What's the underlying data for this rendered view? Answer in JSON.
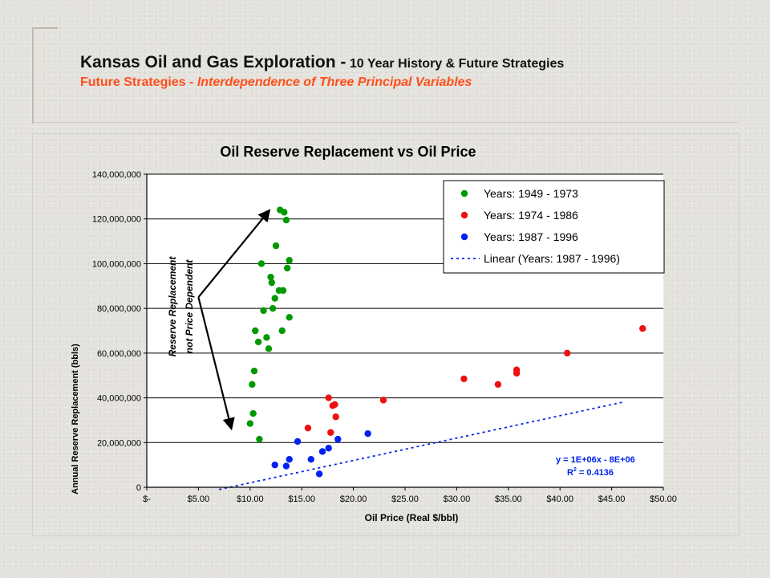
{
  "header": {
    "title_main": "Kansas Oil and Gas Exploration -",
    "title_rest": " 10 Year History & Future Strategies",
    "subtitle_lead": "Future Strategies - ",
    "subtitle_italic": "Interdependence of Three Principal Variables"
  },
  "colors": {
    "green": "#009900",
    "red": "#ee1111",
    "blue": "#0022ee",
    "accent": "#ff4e1a"
  },
  "chart_data": {
    "type": "scatter",
    "title": "Oil Reserve Replacement vs Oil Price",
    "xlabel": "Oil Price (Real $/bbl)",
    "ylabel": "Annual Reserve Replacement (bbls)",
    "xlim": [
      0,
      50
    ],
    "ylim": [
      0,
      140000000
    ],
    "x_ticks": [
      0,
      5,
      10,
      15,
      20,
      25,
      30,
      35,
      40,
      45,
      50
    ],
    "x_tick_labels": [
      "$-",
      "$5.00",
      "$10.00",
      "$15.00",
      "$20.00",
      "$25.00",
      "$30.00",
      "$35.00",
      "$40.00",
      "$45.00",
      "$50.00"
    ],
    "y_ticks": [
      0,
      20000000,
      40000000,
      60000000,
      80000000,
      100000000,
      120000000,
      140000000
    ],
    "y_tick_labels": [
      "0",
      "20,000,000",
      "40,000,000",
      "60,000,000",
      "80,000,000",
      "100,000,000",
      "120,000,000",
      "140,000,000"
    ],
    "grid": "horizontal",
    "legend_position": "top-right",
    "series": [
      {
        "name": "Years: 1949 - 1973",
        "color": "green",
        "points": [
          [
            10.0,
            28500000
          ],
          [
            10.3,
            33000000
          ],
          [
            10.2,
            46000000
          ],
          [
            10.4,
            52000000
          ],
          [
            10.5,
            70000000
          ],
          [
            10.8,
            65000000
          ],
          [
            10.9,
            21500000
          ],
          [
            11.1,
            100000000
          ],
          [
            11.3,
            79000000
          ],
          [
            11.6,
            67000000
          ],
          [
            11.8,
            62000000
          ],
          [
            12.0,
            94000000
          ],
          [
            12.1,
            91500000
          ],
          [
            12.2,
            80000000
          ],
          [
            12.4,
            84500000
          ],
          [
            12.5,
            108000000
          ],
          [
            12.8,
            88000000
          ],
          [
            12.9,
            124000000
          ],
          [
            13.1,
            70000000
          ],
          [
            13.2,
            88000000
          ],
          [
            13.3,
            123000000
          ],
          [
            13.5,
            119500000
          ],
          [
            13.6,
            98000000
          ],
          [
            13.8,
            101500000
          ],
          [
            13.8,
            76000000
          ]
        ]
      },
      {
        "name": "Years: 1974 - 1986",
        "color": "red",
        "points": [
          [
            15.6,
            26500000
          ],
          [
            17.6,
            40000000
          ],
          [
            17.8,
            24500000
          ],
          [
            18.0,
            36500000
          ],
          [
            18.2,
            37000000
          ],
          [
            18.3,
            31500000
          ],
          [
            22.9,
            39000000
          ],
          [
            30.7,
            48500000
          ],
          [
            34.0,
            46000000
          ],
          [
            35.8,
            51000000
          ],
          [
            35.8,
            52500000
          ],
          [
            40.7,
            60000000
          ],
          [
            48.0,
            71000000
          ]
        ]
      },
      {
        "name": "Years: 1987 - 1996",
        "color": "blue",
        "points": [
          [
            12.4,
            10000000
          ],
          [
            13.5,
            9500000
          ],
          [
            13.8,
            12500000
          ],
          [
            14.6,
            20500000
          ],
          [
            15.9,
            12500000
          ],
          [
            16.7,
            6000000
          ],
          [
            17.0,
            16000000
          ],
          [
            17.6,
            17500000
          ],
          [
            18.5,
            21500000
          ],
          [
            21.4,
            24000000
          ]
        ]
      }
    ],
    "trendline": {
      "name": "Linear (Years: 1987 - 1996)",
      "slope": 1000000,
      "intercept": -8000000,
      "x_range": [
        7,
        46
      ],
      "equation": "y = 1E+06x - 8E+06",
      "r2_prefix": "R",
      "r2_sup": "2",
      "r2_value": " = 0.4136"
    },
    "annotation": {
      "line1": "Reserve Replacement",
      "line2": "not Price Dependent",
      "arrow_origin": [
        5,
        85000000
      ],
      "arrow_targets": [
        [
          11.9,
          124000000
        ],
        [
          8.2,
          26000000
        ]
      ]
    }
  }
}
